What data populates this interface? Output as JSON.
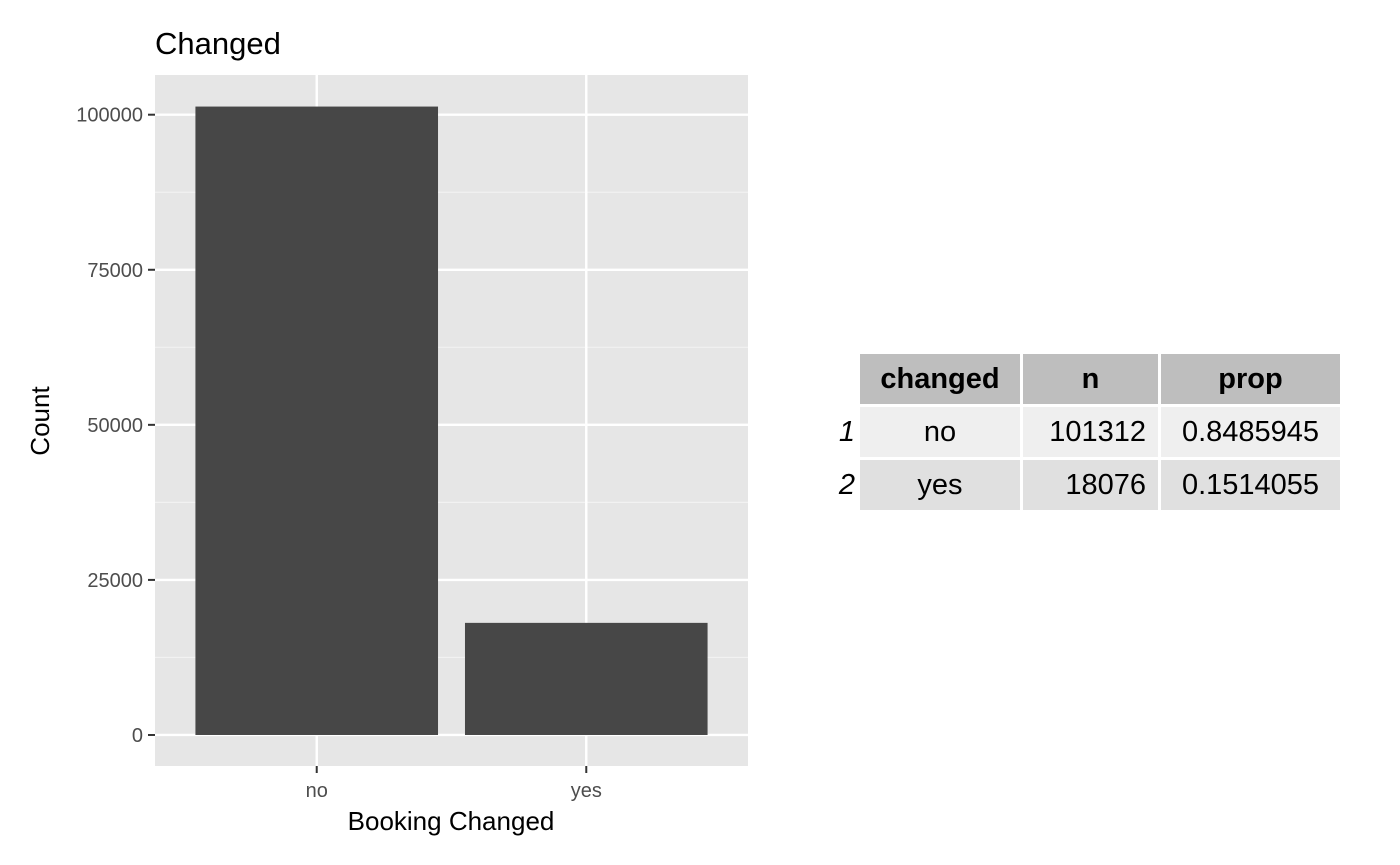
{
  "chart_data": {
    "type": "bar",
    "title": "Changed",
    "xlabel": "Booking Changed",
    "ylabel": "Count",
    "categories": [
      "no",
      "yes"
    ],
    "values": [
      101312,
      18076
    ],
    "yticks": [
      0,
      25000,
      50000,
      75000,
      100000
    ],
    "ylim": [
      -5000,
      106400
    ],
    "grid": true,
    "bar_color": "#474747",
    "panel_color": "#e6e6e6"
  },
  "table": {
    "columns": [
      "changed",
      "n",
      "prop"
    ],
    "rows": [
      {
        "rowname": "1",
        "changed": "no",
        "n": "101312",
        "prop": "0.8485945"
      },
      {
        "rowname": "2",
        "changed": "yes",
        "n": "18076",
        "prop": "0.1514055"
      }
    ]
  }
}
